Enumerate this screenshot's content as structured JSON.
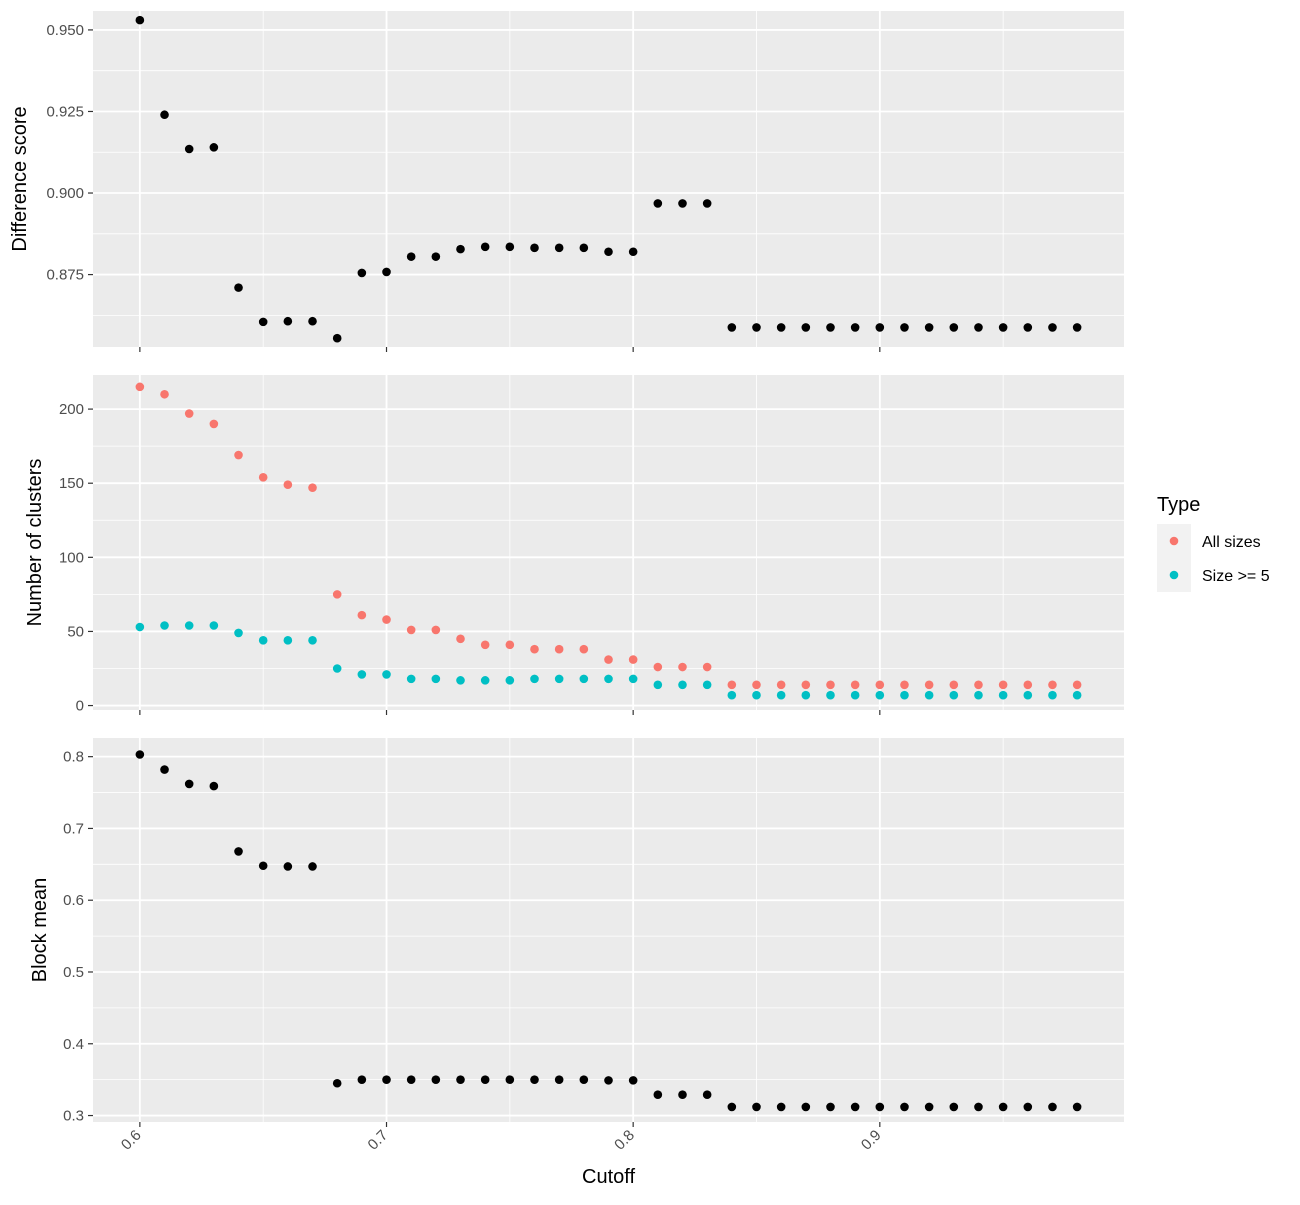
{
  "colors": {
    "panel_bg": "#EBEBEB",
    "grid_major": "#FFFFFF",
    "grid_minor": "#F5F5F5",
    "point_black": "#000000",
    "all_sizes": "#F8766D",
    "size_ge_5": "#00BFC4",
    "tick_text": "#4D4D4D",
    "legend_key_bg": "#F2F2F2"
  },
  "chart_data": [
    {
      "type": "scatter",
      "ylabel": "Difference score",
      "xlabel": "",
      "xlim": [
        0.581,
        0.999
      ],
      "ylim": [
        0.8528,
        0.9558
      ],
      "y_ticks": [
        0.875,
        0.9,
        0.925,
        0.95
      ],
      "y_tick_labels": [
        "0.875",
        "0.900",
        "0.925",
        "0.950"
      ],
      "x_ticks": [
        0.6,
        0.7,
        0.8,
        0.9
      ],
      "x_tick_labels": [],
      "grid": true,
      "series": [
        {
          "color": "#000000",
          "x": [
            0.6,
            0.61,
            0.62,
            0.63,
            0.64,
            0.65,
            0.66,
            0.67,
            0.68,
            0.69,
            0.7,
            0.71,
            0.72,
            0.73,
            0.74,
            0.75,
            0.76,
            0.77,
            0.78,
            0.79,
            0.8,
            0.81,
            0.82,
            0.83,
            0.84,
            0.85,
            0.86,
            0.87,
            0.88,
            0.89,
            0.9,
            0.91,
            0.92,
            0.93,
            0.94,
            0.95,
            0.96,
            0.97,
            0.98
          ],
          "y": [
            0.953,
            0.924,
            0.9135,
            0.914,
            0.871,
            0.8605,
            0.8607,
            0.8607,
            0.8555,
            0.8755,
            0.8758,
            0.8805,
            0.8805,
            0.8828,
            0.8835,
            0.8835,
            0.8832,
            0.8832,
            0.8832,
            0.882,
            0.882,
            0.8968,
            0.8968,
            0.8968,
            0.8588,
            0.8588,
            0.8588,
            0.8588,
            0.8588,
            0.8588,
            0.8588,
            0.8588,
            0.8588,
            0.8588,
            0.8588,
            0.8588,
            0.8588,
            0.8588,
            0.8588
          ]
        }
      ]
    },
    {
      "type": "scatter",
      "ylabel": "Number of clusters",
      "xlabel": "",
      "xlim": [
        0.581,
        0.999
      ],
      "ylim": [
        -3,
        223
      ],
      "y_ticks": [
        0,
        50,
        100,
        150,
        200
      ],
      "y_tick_labels": [
        "0",
        "50",
        "100",
        "150",
        "200"
      ],
      "x_ticks": [
        0.6,
        0.7,
        0.8,
        0.9
      ],
      "x_tick_labels": [],
      "grid": true,
      "legend": {
        "title": "Type",
        "position": "right",
        "entries": [
          {
            "label": "All sizes",
            "color": "#F8766D"
          },
          {
            "label": "Size >= 5",
            "color": "#00BFC4"
          }
        ]
      },
      "series": [
        {
          "name": "All sizes",
          "color": "#F8766D",
          "x": [
            0.6,
            0.61,
            0.62,
            0.63,
            0.64,
            0.65,
            0.66,
            0.67,
            0.68,
            0.69,
            0.7,
            0.71,
            0.72,
            0.73,
            0.74,
            0.75,
            0.76,
            0.77,
            0.78,
            0.79,
            0.8,
            0.81,
            0.82,
            0.83,
            0.84,
            0.85,
            0.86,
            0.87,
            0.88,
            0.89,
            0.9,
            0.91,
            0.92,
            0.93,
            0.94,
            0.95,
            0.96,
            0.97,
            0.98
          ],
          "y": [
            215,
            210,
            197,
            190,
            169,
            154,
            149,
            147,
            75,
            61,
            58,
            51,
            51,
            45,
            41,
            41,
            38,
            38,
            38,
            31,
            31,
            26,
            26,
            26,
            14,
            14,
            14,
            14,
            14,
            14,
            14,
            14,
            14,
            14,
            14,
            14,
            14,
            14,
            14
          ]
        },
        {
          "name": "Size >= 5",
          "color": "#00BFC4",
          "x": [
            0.6,
            0.61,
            0.62,
            0.63,
            0.64,
            0.65,
            0.66,
            0.67,
            0.68,
            0.69,
            0.7,
            0.71,
            0.72,
            0.73,
            0.74,
            0.75,
            0.76,
            0.77,
            0.78,
            0.79,
            0.8,
            0.81,
            0.82,
            0.83,
            0.84,
            0.85,
            0.86,
            0.87,
            0.88,
            0.89,
            0.9,
            0.91,
            0.92,
            0.93,
            0.94,
            0.95,
            0.96,
            0.97,
            0.98
          ],
          "y": [
            53,
            54,
            54,
            54,
            49,
            44,
            44,
            44,
            25,
            21,
            21,
            18,
            18,
            17,
            17,
            17,
            18,
            18,
            18,
            18,
            18,
            14,
            14,
            14,
            7,
            7,
            7,
            7,
            7,
            7,
            7,
            7,
            7,
            7,
            7,
            7,
            7,
            7,
            7
          ]
        }
      ]
    },
    {
      "type": "scatter",
      "ylabel": "Block mean",
      "xlabel": "Cutoff",
      "xlim": [
        0.581,
        0.999
      ],
      "ylim": [
        0.291,
        0.826
      ],
      "y_ticks": [
        0.3,
        0.4,
        0.5,
        0.6,
        0.7,
        0.8
      ],
      "y_tick_labels": [
        "0.3",
        "0.4",
        "0.5",
        "0.6",
        "0.7",
        "0.8"
      ],
      "x_ticks": [
        0.6,
        0.7,
        0.8,
        0.9
      ],
      "x_tick_labels": [
        "0.6",
        "0.7",
        "0.8",
        "0.9"
      ],
      "grid": true,
      "series": [
        {
          "color": "#000000",
          "x": [
            0.6,
            0.61,
            0.62,
            0.63,
            0.64,
            0.65,
            0.66,
            0.67,
            0.68,
            0.69,
            0.7,
            0.71,
            0.72,
            0.73,
            0.74,
            0.75,
            0.76,
            0.77,
            0.78,
            0.79,
            0.8,
            0.81,
            0.82,
            0.83,
            0.84,
            0.85,
            0.86,
            0.87,
            0.88,
            0.89,
            0.9,
            0.91,
            0.92,
            0.93,
            0.94,
            0.95,
            0.96,
            0.97,
            0.98
          ],
          "y": [
            0.803,
            0.782,
            0.762,
            0.759,
            0.668,
            0.648,
            0.647,
            0.647,
            0.345,
            0.35,
            0.35,
            0.35,
            0.35,
            0.35,
            0.35,
            0.35,
            0.35,
            0.35,
            0.35,
            0.349,
            0.349,
            0.329,
            0.329,
            0.329,
            0.312,
            0.312,
            0.312,
            0.312,
            0.312,
            0.312,
            0.312,
            0.312,
            0.312,
            0.312,
            0.312,
            0.312,
            0.312,
            0.312,
            0.312
          ]
        }
      ]
    }
  ]
}
